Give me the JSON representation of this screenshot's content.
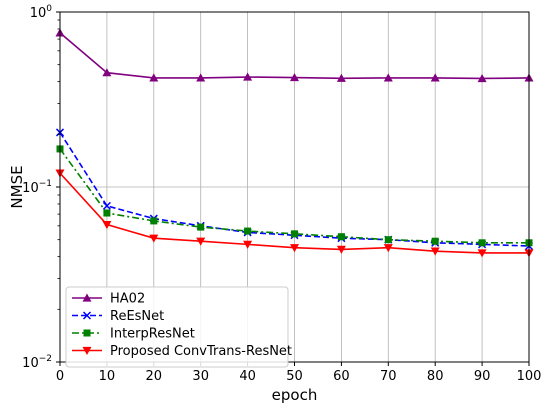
{
  "chart_data": {
    "type": "line",
    "xlabel": "epoch",
    "ylabel": "NMSE",
    "x": [
      0,
      10,
      20,
      30,
      40,
      50,
      60,
      70,
      80,
      90,
      100
    ],
    "xlim": [
      0,
      100
    ],
    "ylim": [
      0.01,
      1
    ],
    "yscale": "log",
    "xticks": [
      "0",
      "10",
      "20",
      "30",
      "40",
      "50",
      "60",
      "70",
      "80",
      "90",
      "100"
    ],
    "yticks": [
      {
        "base": "10",
        "exp": "0",
        "value": 1
      },
      {
        "base": "10",
        "exp": "−1",
        "value": 0.1
      },
      {
        "base": "10",
        "exp": "−2",
        "value": 0.01
      }
    ],
    "grid": true,
    "legend_position": "lower-left",
    "series": [
      {
        "name": "HA02",
        "color": "#800080",
        "marker": "triangle-up",
        "linestyle": "solid",
        "values": [
          0.76,
          0.45,
          0.42,
          0.42,
          0.425,
          0.422,
          0.418,
          0.42,
          0.42,
          0.417,
          0.42
        ]
      },
      {
        "name": "ReEsNet",
        "color": "#0000ff",
        "marker": "x",
        "linestyle": "dashed",
        "values": [
          0.205,
          0.078,
          0.066,
          0.06,
          0.055,
          0.053,
          0.051,
          0.05,
          0.048,
          0.047,
          0.046
        ]
      },
      {
        "name": "InterpResNet",
        "color": "#008000",
        "marker": "square",
        "linestyle": "dashdot",
        "values": [
          0.165,
          0.071,
          0.064,
          0.059,
          0.056,
          0.054,
          0.052,
          0.05,
          0.049,
          0.048,
          0.048
        ]
      },
      {
        "name": "Proposed ConvTrans-ResNet",
        "color": "#ff0000",
        "marker": "triangle-down",
        "linestyle": "solid",
        "values": [
          0.12,
          0.061,
          0.051,
          0.049,
          0.047,
          0.045,
          0.044,
          0.045,
          0.043,
          0.042,
          0.042
        ]
      }
    ]
  }
}
